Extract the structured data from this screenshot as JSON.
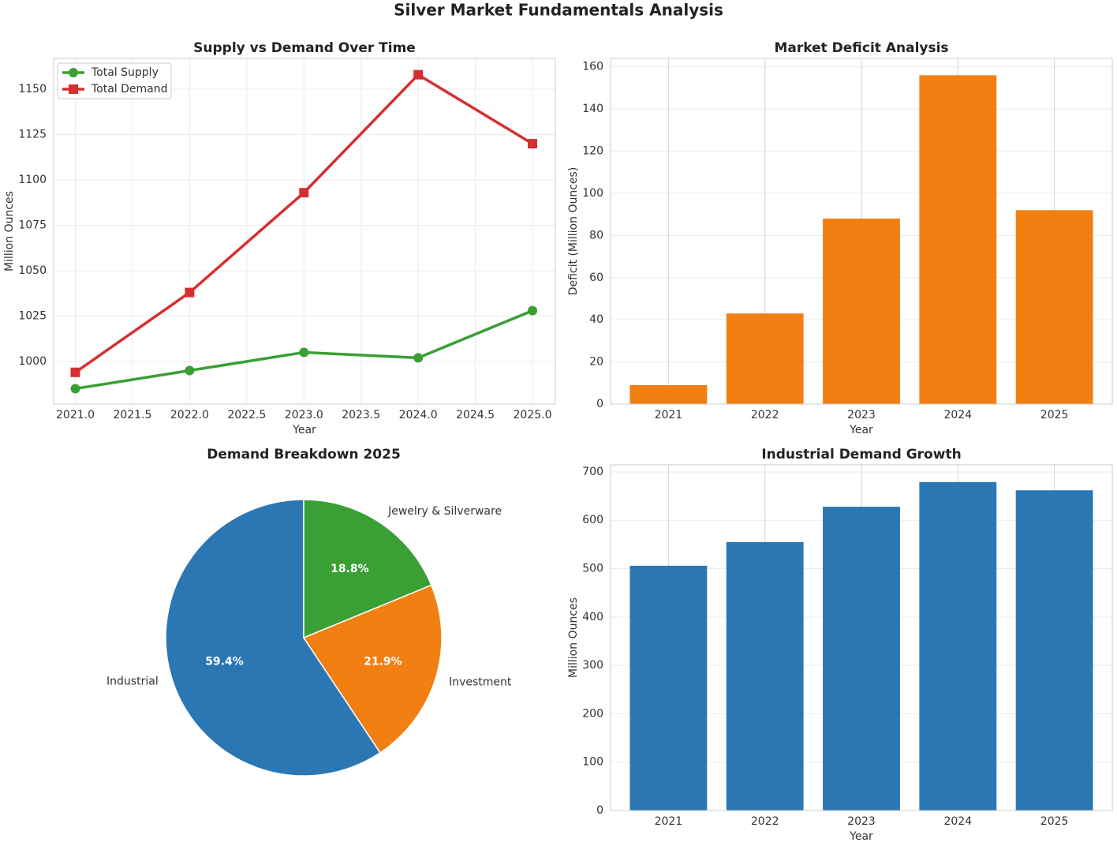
{
  "title": "Silver Market Fundamentals Analysis",
  "chart_data": [
    {
      "type": "line",
      "title": "Supply vs Demand Over Time",
      "xlabel": "Year",
      "ylabel": "Million Ounces",
      "x": [
        2021,
        2022,
        2023,
        2024,
        2025
      ],
      "series": [
        {
          "name": "Total Supply",
          "color": "#3a9f35",
          "marker": "o",
          "values": [
            985,
            995,
            1005,
            1002,
            1028
          ]
        },
        {
          "name": "Total Demand",
          "color": "#d62f2f",
          "marker": "s",
          "values": [
            994,
            1038,
            1093,
            1158,
            1120
          ]
        }
      ],
      "xlim": [
        2020.81,
        2025.2
      ],
      "ylim": [
        976.5,
        1167
      ],
      "xticks": [
        {
          "value": 2021,
          "label": "2021.0"
        },
        {
          "value": 2021.5,
          "label": "2021.5"
        },
        {
          "value": 2022,
          "label": "2022.0"
        },
        {
          "value": 2022.5,
          "label": "2022.5"
        },
        {
          "value": 2023,
          "label": "2023.0"
        },
        {
          "value": 2023.5,
          "label": "2023.5"
        },
        {
          "value": 2024,
          "label": "2024.0"
        },
        {
          "value": 2024.5,
          "label": "2024.5"
        },
        {
          "value": 2025,
          "label": "2025.0"
        }
      ],
      "yticks": [
        1000,
        1025,
        1050,
        1075,
        1100,
        1125,
        1150
      ],
      "grid": true,
      "legend": "upper left"
    },
    {
      "type": "bar",
      "title": "Market Deficit Analysis",
      "xlabel": "Year",
      "ylabel": "Deficit (Million Ounces)",
      "categories": [
        "2021",
        "2022",
        "2023",
        "2024",
        "2025"
      ],
      "values": [
        9,
        43,
        88,
        156,
        92
      ],
      "color": "#f17f12",
      "ylim": [
        0,
        164
      ],
      "yticks": [
        0,
        20,
        40,
        60,
        80,
        100,
        120,
        140,
        160
      ],
      "grid": true
    },
    {
      "type": "pie",
      "title": "Demand Breakdown 2025",
      "categories": [
        "Industrial",
        "Investment",
        "Jewelry & Silverware"
      ],
      "values": [
        59.4,
        21.9,
        18.8
      ],
      "value_labels": [
        "59.4%",
        "21.9%",
        "18.8%"
      ],
      "colors": [
        "#2b77b3",
        "#f17f12",
        "#3a9f35"
      ],
      "startangle": 90
    },
    {
      "type": "bar",
      "title": "Industrial Demand Growth",
      "xlabel": "Year",
      "ylabel": "Million Ounces",
      "categories": [
        "2021",
        "2022",
        "2023",
        "2024",
        "2025"
      ],
      "values": [
        506,
        555,
        628,
        679,
        662
      ],
      "color": "#2b77b3",
      "ylim": [
        0,
        714.6
      ],
      "yticks": [
        0,
        100,
        200,
        300,
        400,
        500,
        600,
        700
      ],
      "grid": true
    }
  ]
}
